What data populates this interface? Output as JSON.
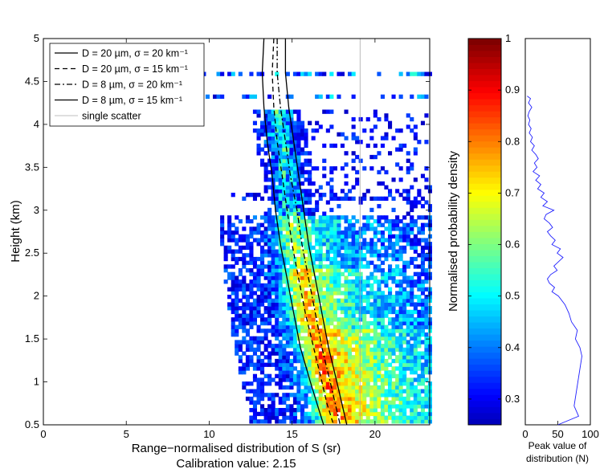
{
  "chart_data": [
    {
      "type": "heatmap",
      "xlabel": "Range−normalised distribution of S (sr)",
      "subtitle": "Calibration value: 2.15",
      "ylabel": "Height (km)",
      "xlim": [
        0,
        23.3
      ],
      "ylim": [
        0.5,
        5
      ],
      "x_ticks": [
        "0",
        "5",
        "10",
        "15",
        "20"
      ],
      "y_ticks": [
        "0.5",
        "1",
        "1.5",
        "2",
        "2.5",
        "3",
        "3.5",
        "4",
        "4.5",
        "5"
      ],
      "single_scatter_x": 19.1,
      "legend_position": "top-left",
      "legend": [
        {
          "label": "D = 20 µm, σ = 20 km⁻¹",
          "style": "solid"
        },
        {
          "label": "D = 20 µm, σ = 15 km⁻¹",
          "style": "dashed"
        },
        {
          "label": "D =  8 µm,  σ = 20 km⁻¹",
          "style": "dashdot"
        },
        {
          "label": "D =  8 µm,  σ = 15 km⁻¹",
          "style": "solid"
        },
        {
          "label": "single scatter",
          "style": "thin-gray"
        }
      ],
      "curves": [
        {
          "style": "solid",
          "points": [
            [
              13.3,
              5.0
            ],
            [
              13.2,
              4.6
            ],
            [
              13.3,
              4.2
            ],
            [
              13.5,
              3.8
            ],
            [
              13.8,
              3.4
            ],
            [
              14.0,
              3.0
            ],
            [
              14.3,
              2.6
            ],
            [
              14.7,
              2.2
            ],
            [
              15.1,
              1.8
            ],
            [
              15.5,
              1.4
            ],
            [
              16.1,
              1.0
            ],
            [
              16.5,
              0.75
            ],
            [
              16.9,
              0.5
            ]
          ]
        },
        {
          "style": "dashed",
          "points": [
            [
              13.9,
              5.0
            ],
            [
              13.8,
              4.6
            ],
            [
              13.9,
              4.2
            ],
            [
              14.1,
              3.8
            ],
            [
              14.4,
              3.4
            ],
            [
              14.7,
              3.0
            ],
            [
              15.0,
              2.6
            ],
            [
              15.4,
              2.2
            ],
            [
              15.8,
              1.8
            ],
            [
              16.3,
              1.4
            ],
            [
              16.8,
              1.0
            ],
            [
              17.1,
              0.75
            ],
            [
              17.5,
              0.5
            ]
          ]
        },
        {
          "style": "dashdot",
          "points": [
            [
              14.1,
              5.0
            ],
            [
              14.1,
              4.6
            ],
            [
              14.3,
              4.2
            ],
            [
              14.6,
              3.8
            ],
            [
              14.9,
              3.4
            ],
            [
              15.3,
              3.0
            ],
            [
              15.6,
              2.6
            ],
            [
              16.0,
              2.2
            ],
            [
              16.4,
              1.8
            ],
            [
              16.8,
              1.4
            ],
            [
              17.3,
              1.0
            ],
            [
              17.6,
              0.75
            ],
            [
              17.9,
              0.5
            ]
          ]
        },
        {
          "style": "solid",
          "points": [
            [
              14.6,
              5.0
            ],
            [
              14.6,
              4.6
            ],
            [
              14.8,
              4.2
            ],
            [
              15.1,
              3.8
            ],
            [
              15.4,
              3.4
            ],
            [
              15.7,
              3.0
            ],
            [
              16.0,
              2.6
            ],
            [
              16.4,
              2.2
            ],
            [
              16.8,
              1.8
            ],
            [
              17.2,
              1.4
            ],
            [
              17.7,
              1.0
            ],
            [
              18.0,
              0.75
            ],
            [
              18.3,
              0.5
            ]
          ]
        }
      ]
    },
    {
      "type": "heatmap",
      "ylabel": "Normalised probability density",
      "colorbar_range": [
        0.25,
        1
      ],
      "ticks": [
        "0.3",
        "0.4",
        "0.5",
        "0.6",
        "0.7",
        "0.8",
        "0.9",
        "1"
      ]
    },
    {
      "type": "line",
      "xlabel": "Peak value of distribution (N)",
      "xlim": [
        0,
        100
      ],
      "ylim": [
        0.5,
        5
      ],
      "x_ticks": [
        "0",
        "50",
        "100"
      ],
      "series": [
        {
          "x": [
            3,
            8,
            5,
            10,
            6,
            4,
            7,
            5,
            9,
            6,
            11,
            8,
            14,
            10,
            16,
            20,
            14,
            18,
            12,
            22,
            16,
            24,
            19,
            29,
            24,
            34,
            27,
            44,
            32,
            29,
            37,
            42,
            34,
            39,
            46,
            41,
            54,
            49,
            58,
            51,
            44,
            49,
            39,
            34,
            37,
            45,
            41,
            51,
            61,
            67,
            71,
            80,
            77,
            84,
            87
          ],
          "y": [
            4.33,
            4.3,
            4.25,
            4.2,
            4.15,
            4.1,
            4.05,
            4.0,
            3.95,
            3.9,
            3.85,
            3.8,
            3.75,
            3.7,
            3.65,
            3.6,
            3.55,
            3.5,
            3.45,
            3.4,
            3.35,
            3.3,
            3.25,
            3.2,
            3.15,
            3.1,
            3.05,
            3.0,
            2.95,
            2.9,
            2.85,
            2.8,
            2.75,
            2.7,
            2.65,
            2.6,
            2.55,
            2.5,
            2.45,
            2.4,
            2.35,
            2.3,
            2.25,
            2.2,
            2.15,
            2.1,
            2.05,
            2.0,
            1.9,
            1.8,
            1.7,
            1.6,
            1.5,
            1.4,
            1.3
          ]
        }
      ]
    }
  ]
}
